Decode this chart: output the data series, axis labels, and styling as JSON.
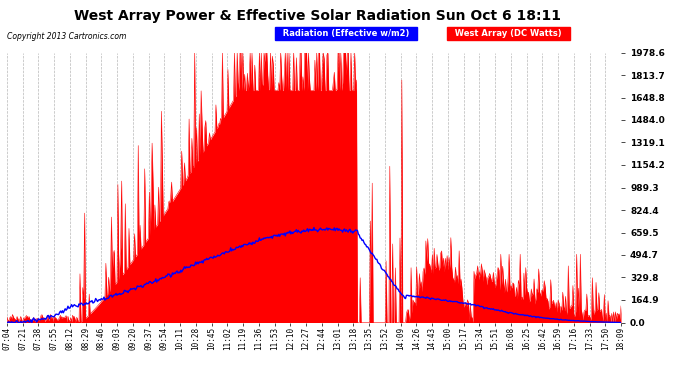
{
  "title": "West Array Power & Effective Solar Radiation Sun Oct 6 18:11",
  "copyright": "Copyright 2013 Cartronics.com",
  "legend_labels": [
    "Radiation (Effective w/m2)",
    "West Array (DC Watts)"
  ],
  "y_ticks": [
    0.0,
    164.9,
    329.8,
    494.7,
    659.5,
    824.4,
    989.3,
    1154.2,
    1319.1,
    1484.0,
    1648.8,
    1813.7,
    1978.6
  ],
  "y_max": 1978.6,
  "y_min": 0.0,
  "background_color": "#ffffff",
  "plot_bg_color": "#ffffff",
  "grid_color": "#b0b0b0",
  "x_labels": [
    "07:04",
    "07:21",
    "07:38",
    "07:55",
    "08:12",
    "08:29",
    "08:46",
    "09:03",
    "09:20",
    "09:37",
    "09:54",
    "10:11",
    "10:28",
    "10:45",
    "11:02",
    "11:19",
    "11:36",
    "11:53",
    "12:10",
    "12:27",
    "12:44",
    "13:01",
    "13:18",
    "13:35",
    "13:52",
    "14:09",
    "14:26",
    "14:43",
    "15:00",
    "15:17",
    "15:34",
    "15:51",
    "16:08",
    "16:25",
    "16:42",
    "16:59",
    "17:16",
    "17:33",
    "17:50",
    "18:09"
  ]
}
